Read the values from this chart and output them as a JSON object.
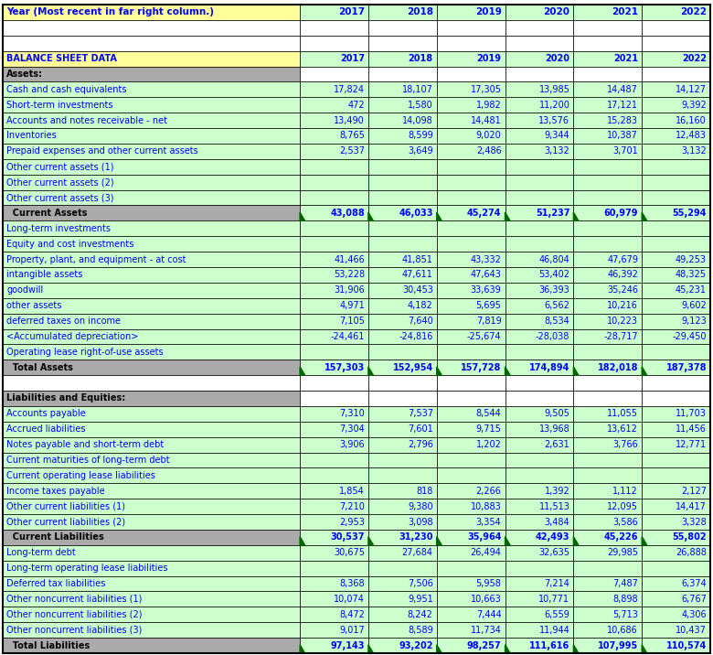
{
  "col_header": [
    "Year (Most recent in far right column.)",
    "2017",
    "2018",
    "2019",
    "2020",
    "2021",
    "2022"
  ],
  "rows": [
    {
      "label": "",
      "values": [
        "",
        "",
        "",
        "",
        "",
        ""
      ],
      "style": "empty"
    },
    {
      "label": "",
      "values": [
        "",
        "",
        "",
        "",
        "",
        ""
      ],
      "style": "empty"
    },
    {
      "label": "BALANCE SHEET DATA",
      "values": [
        "2017",
        "2018",
        "2019",
        "2020",
        "2021",
        "2022"
      ],
      "style": "section_yellow"
    },
    {
      "label": "Assets:",
      "values": [
        "",
        "",
        "",
        "",
        "",
        ""
      ],
      "style": "section_gray"
    },
    {
      "label": "Cash and cash equivalents",
      "values": [
        "17,824",
        "18,107",
        "17,305",
        "13,985",
        "14,487",
        "14,127"
      ],
      "style": "data"
    },
    {
      "label": "Short-term investments",
      "values": [
        "472",
        "1,580",
        "1,982",
        "11,200",
        "17,121",
        "9,392"
      ],
      "style": "data"
    },
    {
      "label": "Accounts and notes receivable - net",
      "values": [
        "13,490",
        "14,098",
        "14,481",
        "13,576",
        "15,283",
        "16,160"
      ],
      "style": "data"
    },
    {
      "label": "Inventories",
      "values": [
        "8,765",
        "8,599",
        "9,020",
        "9,344",
        "10,387",
        "12,483"
      ],
      "style": "data"
    },
    {
      "label": "Prepaid expenses and other current assets",
      "values": [
        "2,537",
        "3,649",
        "2,486",
        "3,132",
        "3,701",
        "3,132"
      ],
      "style": "data"
    },
    {
      "label": "Other current assets (1)",
      "values": [
        "",
        "",
        "",
        "",
        "",
        ""
      ],
      "style": "data"
    },
    {
      "label": "Other current assets (2)",
      "values": [
        "",
        "",
        "",
        "",
        "",
        ""
      ],
      "style": "data"
    },
    {
      "label": "Other current assets (3)",
      "values": [
        "",
        "",
        "",
        "",
        "",
        ""
      ],
      "style": "data"
    },
    {
      "label": "  Current Assets",
      "values": [
        "43,088",
        "46,033",
        "45,274",
        "51,237",
        "60,979",
        "55,294"
      ],
      "style": "subtotal_gray"
    },
    {
      "label": "Long-term investments",
      "values": [
        "",
        "",
        "",
        "",
        "",
        ""
      ],
      "style": "data"
    },
    {
      "label": "Equity and cost investments",
      "values": [
        "",
        "",
        "",
        "",
        "",
        ""
      ],
      "style": "data"
    },
    {
      "label": "Property, plant, and equipment - at cost",
      "values": [
        "41,466",
        "41,851",
        "43,332",
        "46,804",
        "47,679",
        "49,253"
      ],
      "style": "data"
    },
    {
      "label": "intangible assets",
      "values": [
        "53,228",
        "47,611",
        "47,643",
        "53,402",
        "46,392",
        "48,325"
      ],
      "style": "data"
    },
    {
      "label": "goodwill",
      "values": [
        "31,906",
        "30,453",
        "33,639",
        "36,393",
        "35,246",
        "45,231"
      ],
      "style": "data"
    },
    {
      "label": "other assets",
      "values": [
        "4,971",
        "4,182",
        "5,695",
        "6,562",
        "10,216",
        "9,602"
      ],
      "style": "data"
    },
    {
      "label": "deferred taxes on income",
      "values": [
        "7,105",
        "7,640",
        "7,819",
        "8,534",
        "10,223",
        "9,123"
      ],
      "style": "data"
    },
    {
      "label": "<Accumulated depreciation>",
      "values": [
        "-24,461",
        "-24,816",
        "-25,674",
        "-28,038",
        "-28,717",
        "-29,450"
      ],
      "style": "data"
    },
    {
      "label": "Operating lease right-of-use assets",
      "values": [
        "",
        "",
        "",
        "",
        "",
        ""
      ],
      "style": "data"
    },
    {
      "label": "  Total Assets",
      "values": [
        "157,303",
        "152,954",
        "157,728",
        "174,894",
        "182,018",
        "187,378"
      ],
      "style": "subtotal_gray"
    },
    {
      "label": "",
      "values": [
        "",
        "",
        "",
        "",
        "",
        ""
      ],
      "style": "empty"
    },
    {
      "label": "Liabilities and Equities:",
      "values": [
        "",
        "",
        "",
        "",
        "",
        ""
      ],
      "style": "section_gray"
    },
    {
      "label": "Accounts payable",
      "values": [
        "7,310",
        "7,537",
        "8,544",
        "9,505",
        "11,055",
        "11,703"
      ],
      "style": "data"
    },
    {
      "label": "Accrued liabilities",
      "values": [
        "7,304",
        "7,601",
        "9,715",
        "13,968",
        "13,612",
        "11,456"
      ],
      "style": "data"
    },
    {
      "label": "Notes payable and short-term debt",
      "values": [
        "3,906",
        "2,796",
        "1,202",
        "2,631",
        "3,766",
        "12,771"
      ],
      "style": "data"
    },
    {
      "label": "Current maturities of long-term debt",
      "values": [
        "",
        "",
        "",
        "",
        "",
        ""
      ],
      "style": "data"
    },
    {
      "label": "Current operating lease liabilities",
      "values": [
        "",
        "",
        "",
        "",
        "",
        ""
      ],
      "style": "data"
    },
    {
      "label": "Income taxes payable",
      "values": [
        "1,854",
        "818",
        "2,266",
        "1,392",
        "1,112",
        "2,127"
      ],
      "style": "data"
    },
    {
      "label": "Other current liabilities (1)",
      "values": [
        "7,210",
        "9,380",
        "10,883",
        "11,513",
        "12,095",
        "14,417"
      ],
      "style": "data"
    },
    {
      "label": "Other current liabilities (2)",
      "values": [
        "2,953",
        "3,098",
        "3,354",
        "3,484",
        "3,586",
        "3,328"
      ],
      "style": "data"
    },
    {
      "label": "  Current Liabilities",
      "values": [
        "30,537",
        "31,230",
        "35,964",
        "42,493",
        "45,226",
        "55,802"
      ],
      "style": "subtotal_gray"
    },
    {
      "label": "Long-term debt",
      "values": [
        "30,675",
        "27,684",
        "26,494",
        "32,635",
        "29,985",
        "26,888"
      ],
      "style": "data"
    },
    {
      "label": "Long-term operating lease liabilities",
      "values": [
        "",
        "",
        "",
        "",
        "",
        ""
      ],
      "style": "data"
    },
    {
      "label": "Deferred tax liabilities",
      "values": [
        "8,368",
        "7,506",
        "5,958",
        "7,214",
        "7,487",
        "6,374"
      ],
      "style": "data"
    },
    {
      "label": "Other noncurrent liabilities (1)",
      "values": [
        "10,074",
        "9,951",
        "10,663",
        "10,771",
        "8,898",
        "6,767"
      ],
      "style": "data"
    },
    {
      "label": "Other noncurrent liabilities (2)",
      "values": [
        "8,472",
        "8,242",
        "7,444",
        "6,559",
        "5,713",
        "4,306"
      ],
      "style": "data"
    },
    {
      "label": "Other noncurrent liabilities (3)",
      "values": [
        "9,017",
        "8,589",
        "11,734",
        "11,944",
        "10,686",
        "10,437"
      ],
      "style": "data"
    },
    {
      "label": "  Total Liabilities",
      "values": [
        "97,143",
        "93,202",
        "98,257",
        "111,616",
        "107,995",
        "110,574"
      ],
      "style": "subtotal_gray"
    }
  ],
  "header_bg": "#FFFF99",
  "header_text": "#0000FF",
  "data_bg": "#CCFFCC",
  "data_text": "#0000FF",
  "section_gray_bg": "#AAAAAA",
  "section_gray_text": "#000000",
  "subtotal_gray_bg": "#AAAAAA",
  "subtotal_gray_text": "#000000",
  "subtotal_green_bg": "#CCFFCC",
  "empty_bg": "#FFFFFF",
  "border_color": "#000000",
  "triangle_color": "#006600"
}
